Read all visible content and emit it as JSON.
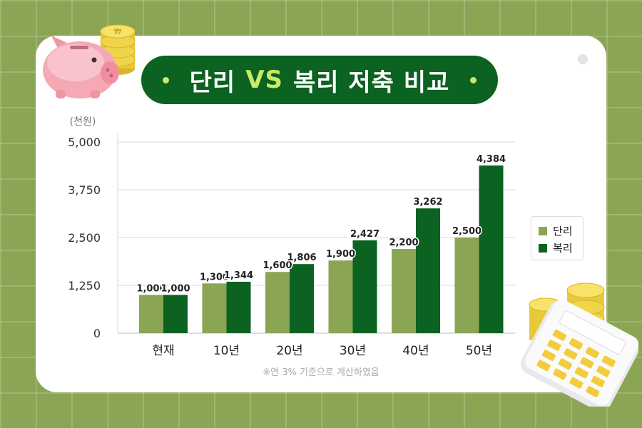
{
  "title": {
    "left": "단리",
    "vs": "VS",
    "right": "복리 저축 비교"
  },
  "note": "※연 3% 기준으로 계산하였음",
  "legend": [
    {
      "label": "단리",
      "color": "#8aa553"
    },
    {
      "label": "복리",
      "color": "#0b6221"
    }
  ],
  "chart_data": {
    "type": "bar",
    "ylabel": "(천원)",
    "ylim": [
      0,
      5000
    ],
    "yticks": [
      0,
      1250,
      2500,
      3750,
      5000
    ],
    "ytick_labels": [
      "0",
      "1,250",
      "2,500",
      "3,750",
      "5,000"
    ],
    "categories": [
      "현재",
      "10년",
      "20년",
      "30년",
      "40년",
      "50년"
    ],
    "series": [
      {
        "name": "단리",
        "values": [
          1000,
          1300,
          1600,
          1900,
          2200,
          2500
        ],
        "labels": [
          "1,000",
          "1,300",
          "1,600",
          "1,900",
          "2,200",
          "2,500"
        ]
      },
      {
        "name": "복리",
        "values": [
          1000,
          1344,
          1806,
          2427,
          3262,
          4384
        ],
        "labels": [
          "1,000",
          "1,344",
          "1,806",
          "2,427",
          "3,262",
          "4,384"
        ]
      }
    ],
    "grid": true,
    "legend_position": "right"
  }
}
